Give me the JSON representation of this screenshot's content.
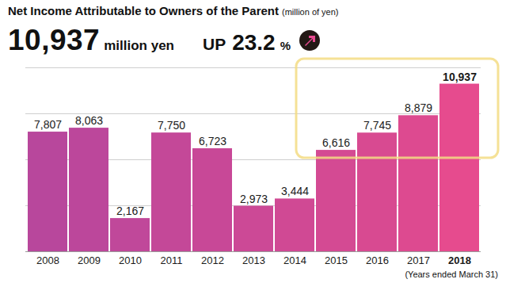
{
  "chart_data": {
    "type": "bar",
    "title": "Net Income Attributable to Owners of the Parent",
    "subtitle": "(million of yen)",
    "headline": {
      "value": "10,937",
      "unit": "million yen",
      "change_word": "UP",
      "change": "23.2",
      "change_unit": "%"
    },
    "caption": "(Years ended March 31)",
    "categories": [
      "2008",
      "2009",
      "2010",
      "2011",
      "2012",
      "2013",
      "2014",
      "2015",
      "2016",
      "2017",
      "2018"
    ],
    "values": [
      7807,
      8063,
      2167,
      7750,
      6723,
      2973,
      3444,
      6616,
      7745,
      8879,
      10937
    ],
    "value_labels": [
      "7,807",
      "8,063",
      "2,167",
      "7,750",
      "6,723",
      "2,973",
      "3,444",
      "6,616",
      "7,745",
      "8,879",
      "10,937"
    ],
    "colors": [
      "#b8479c",
      "#bc479b",
      "#c0489a",
      "#c44898",
      "#c84897",
      "#cc4996",
      "#d04994",
      "#d44a93",
      "#d84a91",
      "#dd4a90",
      "#e64b8e"
    ],
    "ylim": [
      0,
      12000
    ],
    "yticks": [
      0,
      3000,
      6000,
      9000,
      12000
    ],
    "grid": true,
    "data_labels": true,
    "tick_labels": "x",
    "annotations": [
      {
        "type": "highlight",
        "from": "2015",
        "to": "2018"
      }
    ]
  }
}
